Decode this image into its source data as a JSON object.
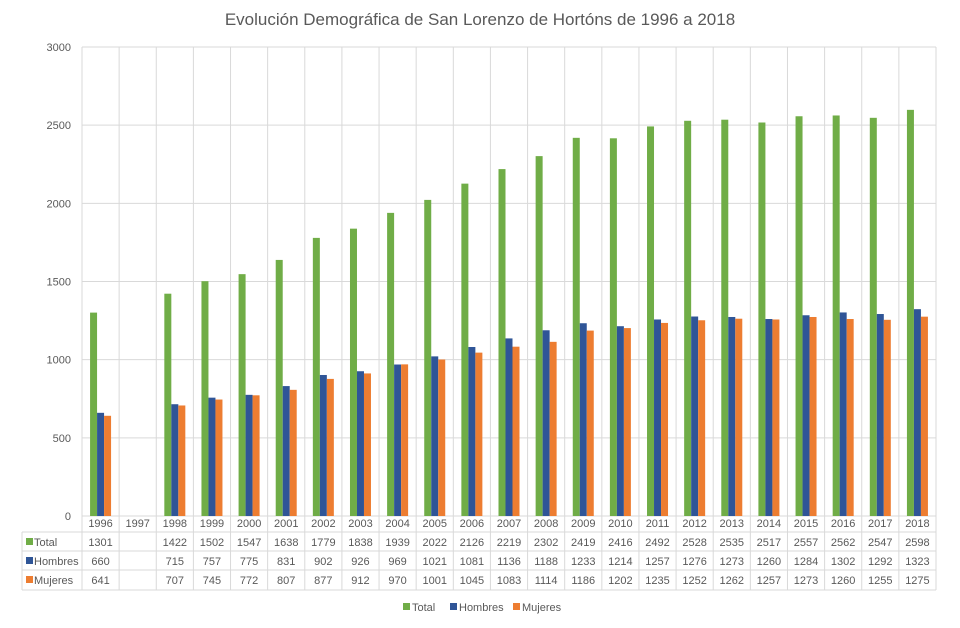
{
  "chart_data": {
    "type": "bar",
    "title": "Evolución Demográfica de San Lorenzo de Hortóns de 1996 a 2018",
    "categories": [
      "1996",
      "1997",
      "1998",
      "1999",
      "2000",
      "2001",
      "2002",
      "2003",
      "2004",
      "2005",
      "2006",
      "2007",
      "2008",
      "2009",
      "2010",
      "2011",
      "2012",
      "2013",
      "2014",
      "2015",
      "2016",
      "2017",
      "2018"
    ],
    "series": [
      {
        "name": "Total",
        "color": "#70ad47",
        "values": [
          1301,
          null,
          1422,
          1502,
          1547,
          1638,
          1779,
          1838,
          1939,
          2022,
          2126,
          2219,
          2302,
          2419,
          2416,
          2492,
          2528,
          2535,
          2517,
          2557,
          2562,
          2547,
          2598
        ]
      },
      {
        "name": "Hombres",
        "color": "#2f5597",
        "values": [
          660,
          null,
          715,
          757,
          775,
          831,
          902,
          926,
          969,
          1021,
          1081,
          1136,
          1188,
          1233,
          1214,
          1257,
          1276,
          1273,
          1260,
          1284,
          1302,
          1292,
          1323
        ]
      },
      {
        "name": "Mujeres",
        "color": "#ed7d31",
        "values": [
          641,
          null,
          707,
          745,
          772,
          807,
          877,
          912,
          970,
          1001,
          1045,
          1083,
          1114,
          1186,
          1202,
          1235,
          1252,
          1262,
          1257,
          1273,
          1260,
          1255,
          1275
        ]
      }
    ],
    "ylim": [
      0,
      3000
    ],
    "yticks": [
      0,
      500,
      1000,
      1500,
      2000,
      2500,
      3000
    ],
    "grid": true,
    "data_table": true,
    "legend": "bottom"
  }
}
